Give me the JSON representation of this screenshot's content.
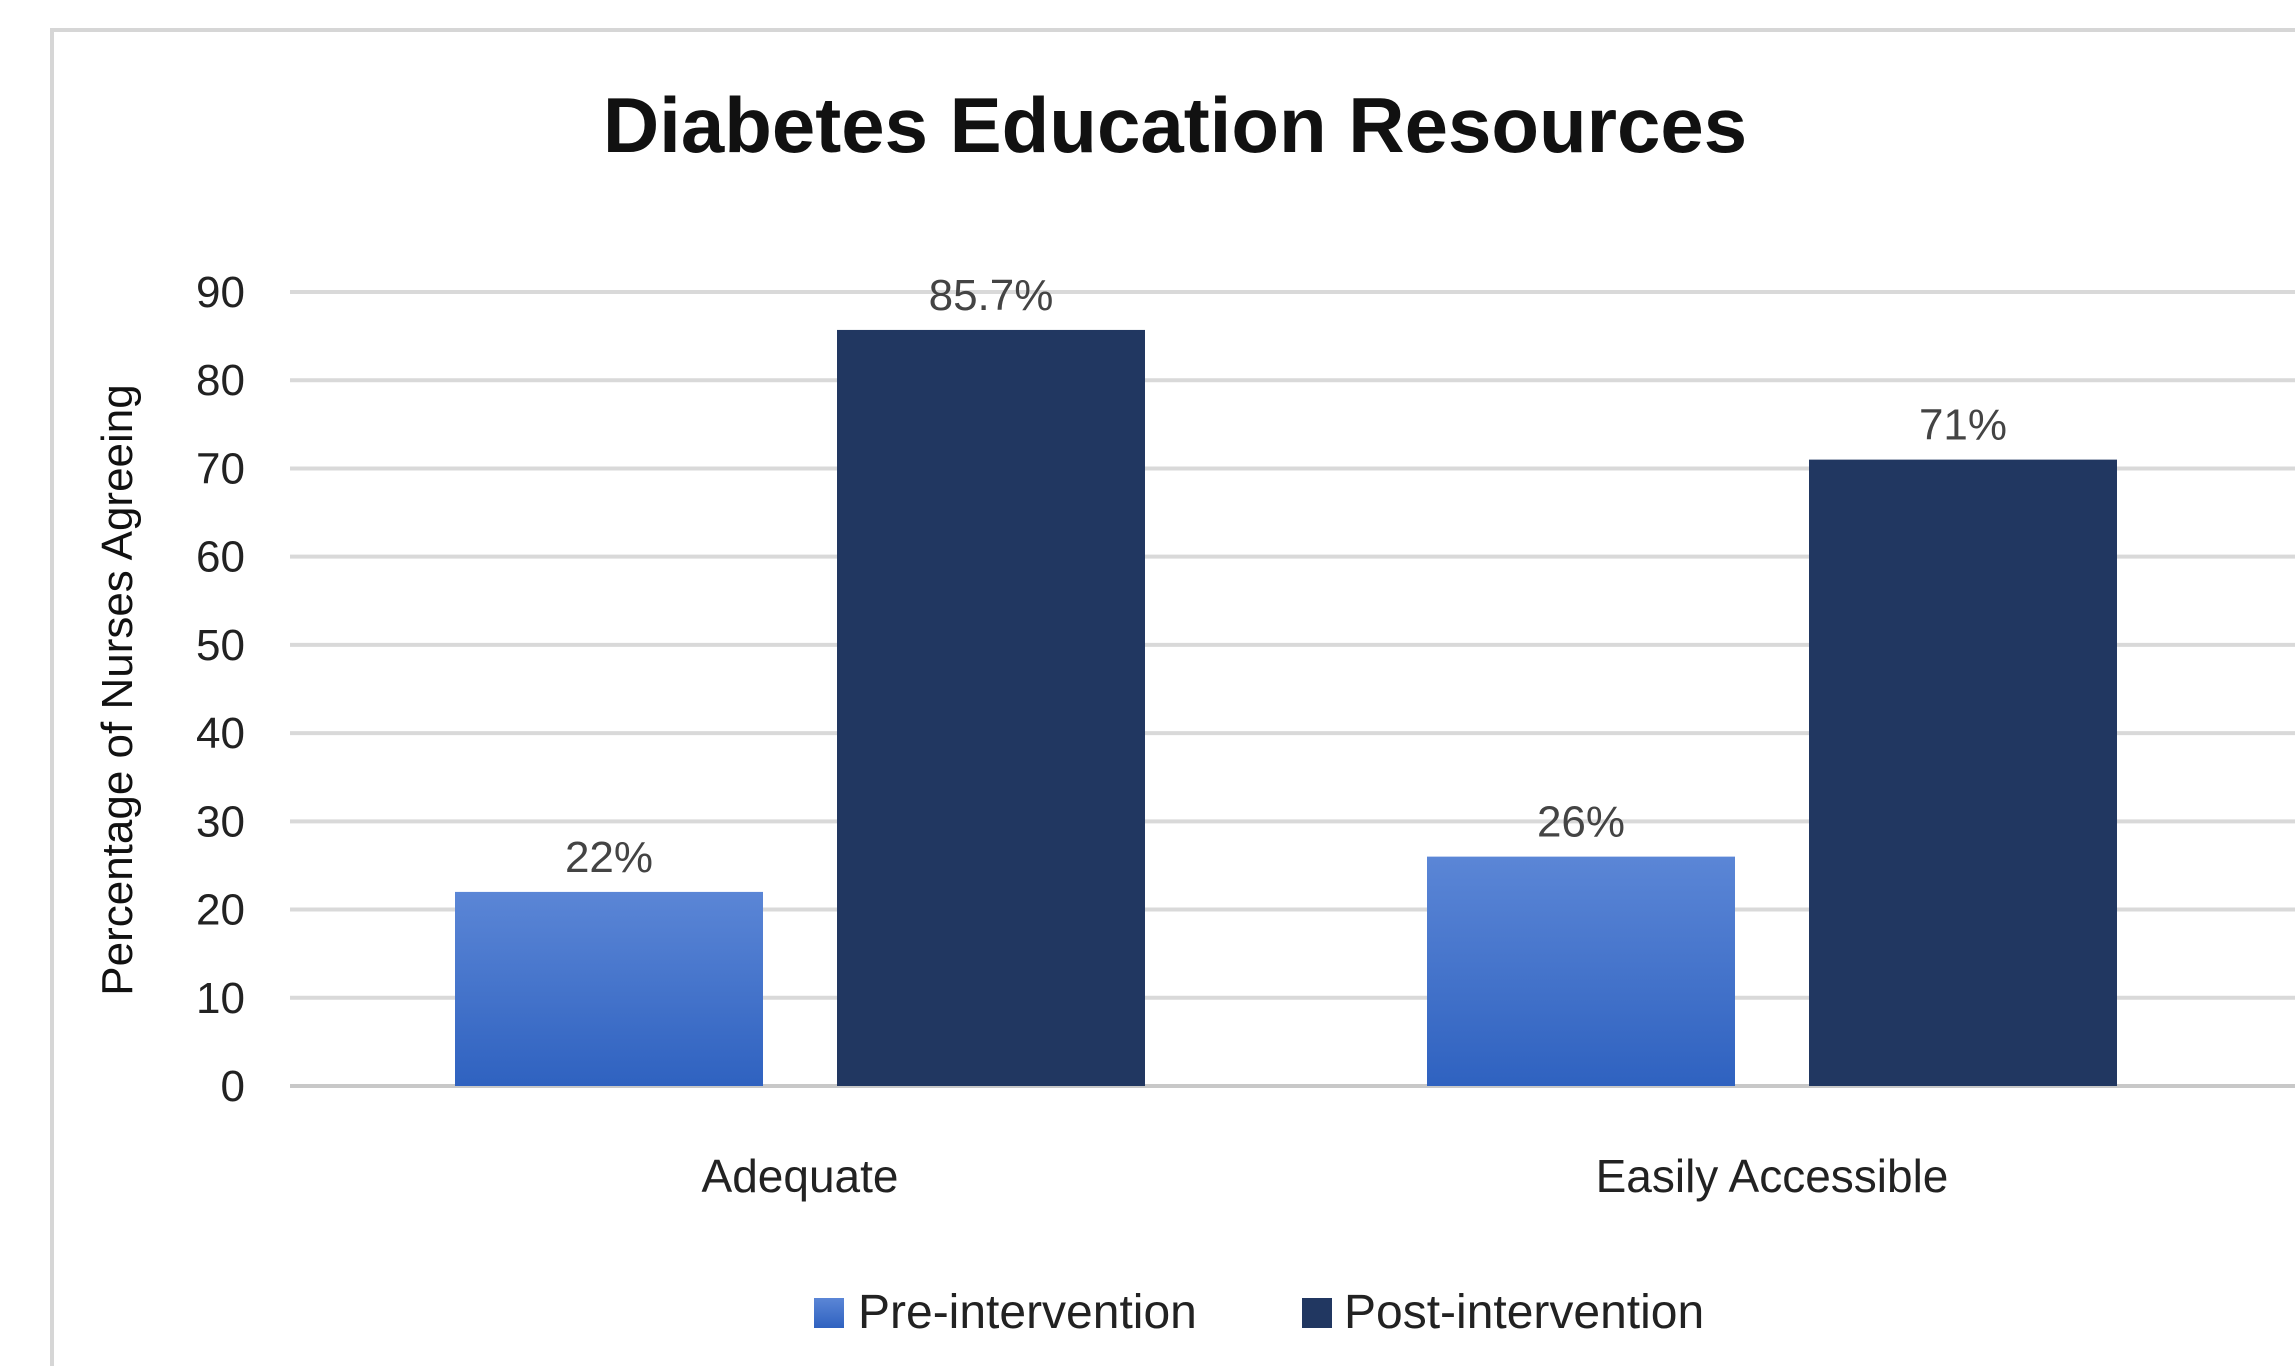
{
  "chart_data": {
    "type": "bar",
    "title": "Diabetes Education Resources",
    "xlabel": "",
    "ylabel": "Percentage of Nurses Agreeing",
    "ylim": [
      0,
      90
    ],
    "yticks": [
      "0",
      "10",
      "20",
      "30",
      "40",
      "50",
      "60",
      "70",
      "80",
      "90"
    ],
    "grid": true,
    "legend_position": "bottom",
    "categories": [
      "Adequate",
      "Easily Accessible"
    ],
    "series": [
      {
        "name": "Pre-intervention",
        "values": [
          22,
          26
        ],
        "labels": [
          "22%",
          "26%"
        ],
        "color": "#4a78cf"
      },
      {
        "name": "Post-intervention",
        "values": [
          85.7,
          71
        ],
        "labels": [
          "85.7%",
          "71%"
        ],
        "color": "#213761"
      }
    ]
  }
}
